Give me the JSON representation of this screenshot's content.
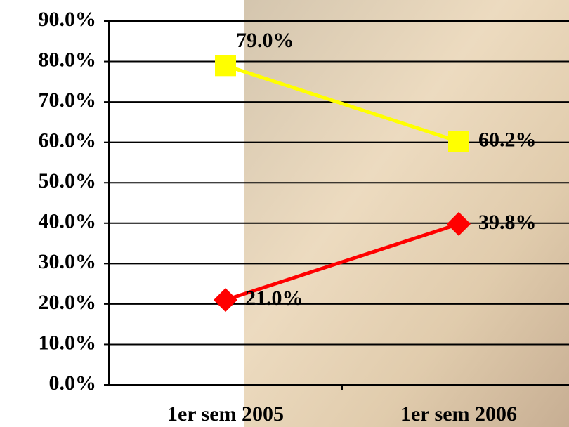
{
  "chart_data": {
    "type": "line",
    "categories": [
      "1er sem 2005",
      "1er sem 2006"
    ],
    "series": [
      {
        "color": "#ffff00",
        "marker": "square",
        "values": [
          79.0,
          60.2
        ],
        "value_labels": [
          "79.0%",
          "60.2%"
        ]
      },
      {
        "color": "#ff0000",
        "marker": "diamond",
        "values": [
          21.0,
          39.8
        ],
        "value_labels": [
          "21.0%",
          "39.8%"
        ]
      }
    ],
    "ylim": [
      0,
      90
    ],
    "yticks": [
      {
        "value": 0,
        "label": "0.0%"
      },
      {
        "value": 10,
        "label": "10.0%"
      },
      {
        "value": 20,
        "label": "20.0%"
      },
      {
        "value": 30,
        "label": "30.0%"
      },
      {
        "value": 40,
        "label": "40.0%"
      },
      {
        "value": 50,
        "label": "50.0%"
      },
      {
        "value": 60,
        "label": "60.0%"
      },
      {
        "value": 70,
        "label": "70.0%"
      },
      {
        "value": 80,
        "label": "80.0%"
      },
      {
        "value": 90,
        "label": "90.0%"
      }
    ],
    "grid": true
  }
}
